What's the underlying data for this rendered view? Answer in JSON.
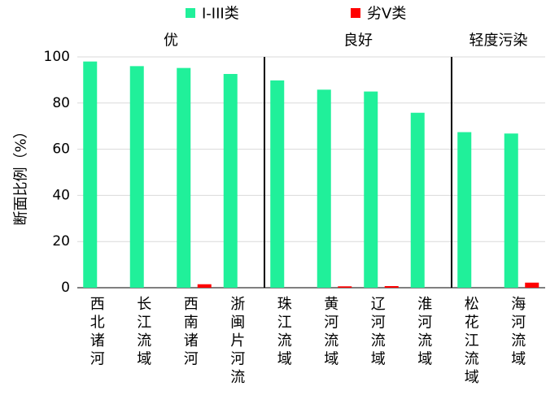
{
  "chart_data": {
    "type": "bar",
    "ylabel": "断面比例（%）",
    "ylim": [
      0,
      100
    ],
    "yticks": [
      0,
      20,
      40,
      60,
      80,
      100
    ],
    "grid": true,
    "legend_position": "top",
    "categories": [
      "西北诸河",
      "长江流域",
      "西南诸河",
      "浙闽片河流",
      "珠江流域",
      "黄河流域",
      "辽河流域",
      "淮河流域",
      "松花江流域",
      "海河流域"
    ],
    "series": [
      {
        "name": "I-III类",
        "color": "#20f09a",
        "values": [
          98.0,
          96.0,
          95.2,
          92.6,
          89.8,
          85.8,
          85.0,
          75.8,
          67.4,
          66.8
        ]
      },
      {
        "name": "劣V类",
        "color": "#ff0000",
        "values": [
          0,
          0,
          1.5,
          0,
          0,
          0.6,
          0.7,
          0,
          0,
          2.2
        ]
      }
    ],
    "groups": [
      {
        "label": "优",
        "from": 0,
        "to": 3
      },
      {
        "label": "良好",
        "from": 4,
        "to": 7
      },
      {
        "label": "轻度污染",
        "from": 8,
        "to": 9
      }
    ]
  }
}
